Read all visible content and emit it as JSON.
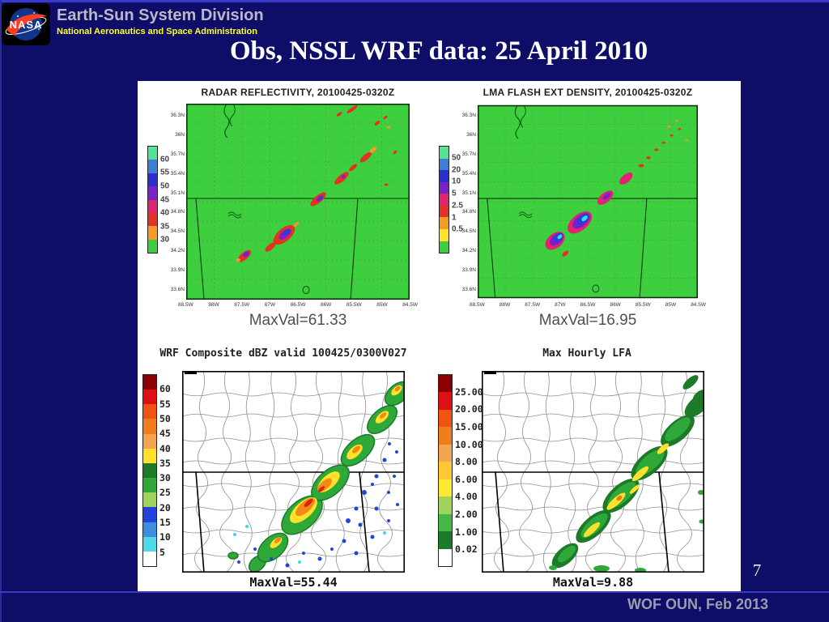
{
  "slide": {
    "header": {
      "logo": "NASA",
      "division": "Earth-Sun System Division",
      "agency": "National Aeronautics and Space Administration"
    },
    "title": "Obs, NSSL WRF data: 25 April 2010",
    "page_number": "7",
    "footer": "WOF OUN, Feb 2013"
  },
  "colors": {
    "background": "#0e0e68",
    "accent_line": "#3a3ac9",
    "header_division": "#b9b9c6",
    "header_agency": "#ffff2f",
    "map_green": "#3ecf3e",
    "content_background": "#ffffff"
  },
  "chart_data": [
    {
      "id": "radar_reflectivity_obs",
      "type": "heatmap",
      "title": "RADAR REFLECTIVITY, 20100425-0320Z",
      "units": "dBZ",
      "max_val": 61.33,
      "max_val_label": "MaxVal=61.33",
      "colorbar": {
        "labels": [
          "60",
          "55",
          "50",
          "45",
          "40",
          "35",
          "30"
        ],
        "colors": [
          "#52e596",
          "#3b7fd9",
          "#2b2fd0",
          "#7a1fc9",
          "#e0246e",
          "#e23223",
          "#f59a22",
          "#3ecf3e"
        ]
      },
      "y_ticks": [
        "36.3N",
        "36N",
        "35.7N",
        "35.4N",
        "35.1N",
        "34.8N",
        "34.5N",
        "34.2N",
        "33.9N",
        "33.6N"
      ],
      "x_ticks": [
        "88.5W",
        "88W",
        "87.5W",
        "87W",
        "86.5W",
        "86W",
        "85.5W",
        "85W",
        "84.5W"
      ],
      "description": "Observed radar reflectivity on green land background; broken SW-NE line of convective cells with 45-60 dBZ cores"
    },
    {
      "id": "lma_flash_extent_density_obs",
      "type": "heatmap",
      "title": "LMA FLASH EXT DENSITY, 20100425-0320Z",
      "units": "flashes",
      "max_val": 16.95,
      "max_val_label": "MaxVal=16.95",
      "colorbar": {
        "labels": [
          "50",
          "20",
          "10",
          "5",
          "2.5",
          "1",
          "0.5"
        ],
        "colors": [
          "#52e596",
          "#3b7fd9",
          "#2b2fd0",
          "#7a1fc9",
          "#e0246e",
          "#e23223",
          "#f59a22",
          "#ffe12b",
          "#3ecf3e"
        ]
      },
      "y_ticks": [
        "36.3N",
        "36N",
        "35.7N",
        "35.4N",
        "35.1N",
        "34.8N",
        "34.5N",
        "34.2N",
        "33.9N",
        "33.6N"
      ],
      "x_ticks": [
        "88.5W",
        "88W",
        "87.5W",
        "87W",
        "86.5W",
        "86W",
        "85.5W",
        "85W",
        "84.5W"
      ],
      "description": "Observed LMA flash extent density; blue 10-20 cores embedded in magenta/red fringe along the same SW-NE storm line"
    },
    {
      "id": "wrf_composite_dbz",
      "type": "heatmap",
      "title": "WRF Composite dBZ valid 100425/0300V027",
      "units": "dBZ",
      "max_val": 55.44,
      "max_val_label": "MaxVal=55.44",
      "colorbar": {
        "labels": [
          "60",
          "55",
          "50",
          "45",
          "40",
          "35",
          "30",
          "25",
          "20",
          "15",
          "10",
          "5"
        ],
        "colors": [
          "#8b0000",
          "#dd1111",
          "#ee5511",
          "#f07d1a",
          "#f2a54e",
          "#ffe12b",
          "#1c7a28",
          "#2fa83a",
          "#9ed45c",
          "#2244dd",
          "#3c8fe0",
          "#4fd9e8",
          "#ffffff"
        ]
      },
      "description": "NSSL WRF forecast composite reflectivity over county map; SW-NE squall line with orange/red 45-55 dBZ cores and scattered blue 5-15 dBZ echoes"
    },
    {
      "id": "wrf_max_hourly_lfa",
      "type": "heatmap",
      "title": "Max Hourly LFA",
      "units": "flashes",
      "max_val": 9.88,
      "max_val_label": "MaxVal=9.88",
      "colorbar": {
        "labels": [
          "25.00",
          "20.00",
          "15.00",
          "10.00",
          "8.00",
          "6.00",
          "4.00",
          "2.00",
          "1.00",
          "0.02"
        ],
        "colors": [
          "#8b0000",
          "#dd1111",
          "#ee5511",
          "#f07d1a",
          "#f2a54e",
          "#fdc835",
          "#ffe833",
          "#9ed45c",
          "#46b847",
          "#1c7a28",
          "#ffffff"
        ]
      },
      "description": "Forecast maximum hourly lightning forecast algorithm; SW-NE dark-green band with yellow 4-8 core and small orange maximum"
    }
  ]
}
